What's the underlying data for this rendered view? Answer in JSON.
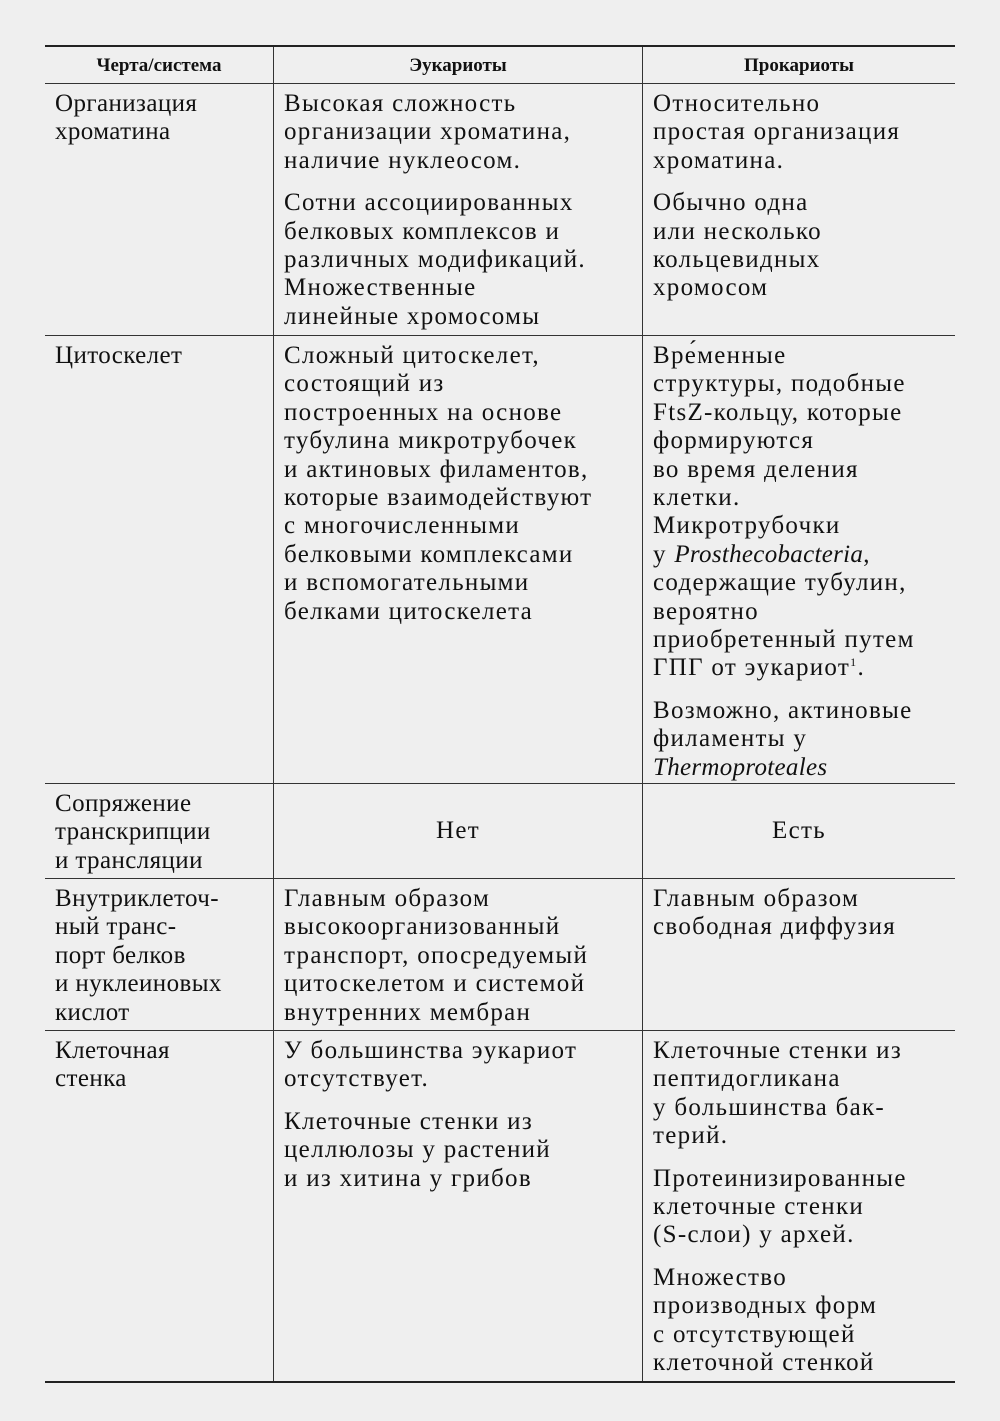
{
  "header": [
    "Черта/система",
    "Эукариоты",
    "Прокариоты"
  ],
  "rows": [
    {
      "cells": [
        {
          "paras": [
            [
              "Организация",
              "хроматина"
            ]
          ]
        },
        {
          "paras": [
            [
              "Высокая сложность",
              "организации хроматина,",
              "наличие нуклеосом."
            ],
            [
              "Сотни ассоциированных",
              "белковых комплексов и",
              "различных модификаций.",
              "Множественные",
              "линейные хромосомы"
            ]
          ]
        },
        {
          "paras": [
            [
              "Относительно",
              "простая организация",
              "хроматина."
            ],
            [
              "Обычно одна",
              "или несколько",
              "кольцевидных",
              "хромосом"
            ]
          ]
        }
      ]
    },
    {
      "cells": [
        {
          "paras": [
            [
              "Цитоскелет"
            ]
          ]
        },
        {
          "paras": [
            [
              "Сложный цитоскелет,",
              "состоящий из",
              "построенных на основе",
              "тубулина микротрубочек",
              "и актиновых филаментов,",
              "которые взаимодействуют",
              "с многочисленными",
              "белковыми комплексами",
              "и вспомогательными",
              "белками цитоскелета"
            ]
          ]
        },
        {
          "paras": [
            [
              "Вре́менные",
              "структуры, подобные",
              "FtsZ-кольцу, которые",
              "формируются",
              "во время деления",
              "клетки.",
              "Микротрубочки",
              [
                {
                  "text": "у "
                },
                {
                  "text": "Prosthecobacteria",
                  "italic": true
                },
                {
                  "text": ","
                }
              ],
              "содержащие тубулин,",
              "вероятно",
              "приобретенный путем",
              [
                {
                  "text": "ГПГ от эукариот"
                },
                {
                  "text": "1",
                  "sup": true
                },
                {
                  "text": "."
                }
              ]
            ],
            [
              "Возможно, актиновые",
              "филаменты у",
              [
                {
                  "text": "Thermoproteales",
                  "italic": true
                }
              ]
            ]
          ]
        }
      ]
    },
    {
      "cells": [
        {
          "paras": [
            [
              "Сопряжение",
              "транскрипции",
              "и трансляции"
            ]
          ]
        },
        {
          "paras": [
            [
              "Нет"
            ]
          ],
          "center": true
        },
        {
          "paras": [
            [
              "Есть"
            ]
          ],
          "center": true
        }
      ]
    },
    {
      "cells": [
        {
          "paras": [
            [
              "Внутриклеточ-",
              "ный транс-",
              "порт белков",
              "и нуклеиновых",
              "кислот"
            ]
          ]
        },
        {
          "paras": [
            [
              "Главным образом",
              "высокоорганизованный",
              "транспорт, опосредуемый",
              "цитоскелетом и системой",
              "внутренних мембран"
            ]
          ]
        },
        {
          "paras": [
            [
              "Главным образом",
              "свободная диффузия"
            ]
          ]
        }
      ]
    },
    {
      "cells": [
        {
          "paras": [
            [
              "Клеточная",
              "стенка"
            ]
          ]
        },
        {
          "paras": [
            [
              "У большинства эукариот",
              "отсутствует."
            ],
            [
              "Клеточные стенки из",
              "целлюлозы у растений",
              "и из хитина у грибов"
            ]
          ]
        },
        {
          "paras": [
            [
              "Клеточные стенки из",
              "пептидогликана",
              "у большинства бак-",
              "терий."
            ],
            [
              "Протеинизированные",
              "клеточные стенки",
              "(S-слои) у архей."
            ],
            [
              "Множество",
              "производных форм",
              "с отсутствующей",
              "клеточной стенкой"
            ]
          ]
        }
      ]
    }
  ]
}
